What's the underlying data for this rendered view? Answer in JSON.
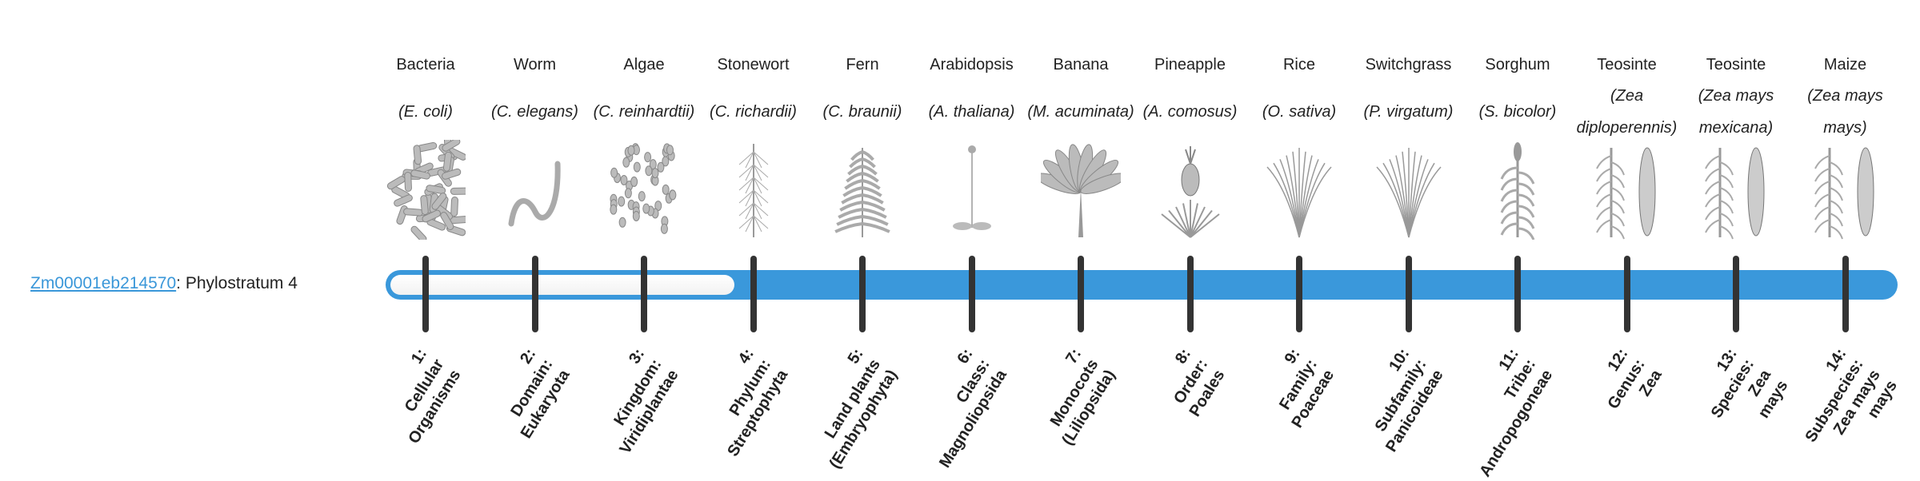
{
  "gene": {
    "id": "Zm00001eb214570",
    "suffix": ": Phylostratum 4",
    "phylostratum": 4
  },
  "colors": {
    "accent": "#3a98db",
    "link": "#3a97d9",
    "tick": "#333333"
  },
  "columns": [
    {
      "common": "Bacteria",
      "sci": "(E. coli)",
      "icon": "rods",
      "stratum": [
        "1:",
        "Cellular",
        "Organisms"
      ]
    },
    {
      "common": "Worm",
      "sci": "(C. elegans)",
      "icon": "worm",
      "stratum": [
        "2:",
        "Domain:",
        "Eukaryota"
      ]
    },
    {
      "common": "Algae",
      "sci": "(C. reinhardtii)",
      "icon": "cells",
      "stratum": [
        "3:",
        "Kingdom:",
        "Viridiplantae"
      ]
    },
    {
      "common": "Stonewort",
      "sci": "(C. richardii)",
      "icon": "stonewort",
      "stratum": [
        "4:",
        "Phylum:",
        "Streptophyta"
      ]
    },
    {
      "common": "Fern",
      "sci": "(C. braunii)",
      "icon": "fern",
      "stratum": [
        "5:",
        "Land plants",
        "(Embryophyta)"
      ]
    },
    {
      "common": "Arabidopsis",
      "sci": "(A. thaliana)",
      "icon": "herb",
      "stratum": [
        "6:",
        "Class:",
        "Magnoliopsida"
      ]
    },
    {
      "common": "Banana",
      "sci": "(M. acuminata)",
      "icon": "palm",
      "stratum": [
        "7:",
        "Monocots",
        "(Liliopsida)"
      ]
    },
    {
      "common": "Pineapple",
      "sci": "(A. comosus)",
      "icon": "pineapple",
      "stratum": [
        "8:",
        "Order:",
        "Poales"
      ]
    },
    {
      "common": "Rice",
      "sci": "(O. sativa)",
      "icon": "grass",
      "stratum": [
        "9:",
        "Family:",
        "Poaceae"
      ]
    },
    {
      "common": "Switchgrass",
      "sci": "(P. virgatum)",
      "icon": "grass",
      "stratum": [
        "10:",
        "Subfamily:",
        "Panicoideae"
      ]
    },
    {
      "common": "Sorghum",
      "sci": "(S. bicolor)",
      "icon": "sorghum",
      "stratum": [
        "11:",
        "Tribe:",
        "Andropogoneae"
      ]
    },
    {
      "common": "Teosinte",
      "sci": "(Zea diploperennis)",
      "icon": "corn",
      "stratum": [
        "12:",
        "Genus:",
        "Zea"
      ]
    },
    {
      "common": "Teosinte",
      "sci": "(Zea mays mexicana)",
      "icon": "corn",
      "stratum": [
        "13:",
        "Species:",
        "Zea",
        "mays"
      ]
    },
    {
      "common": "Maize",
      "sci": "(Zea mays mays)",
      "icon": "corn",
      "stratum": [
        "14:",
        "Subspecies:",
        "Zea mays",
        "mays"
      ]
    }
  ]
}
